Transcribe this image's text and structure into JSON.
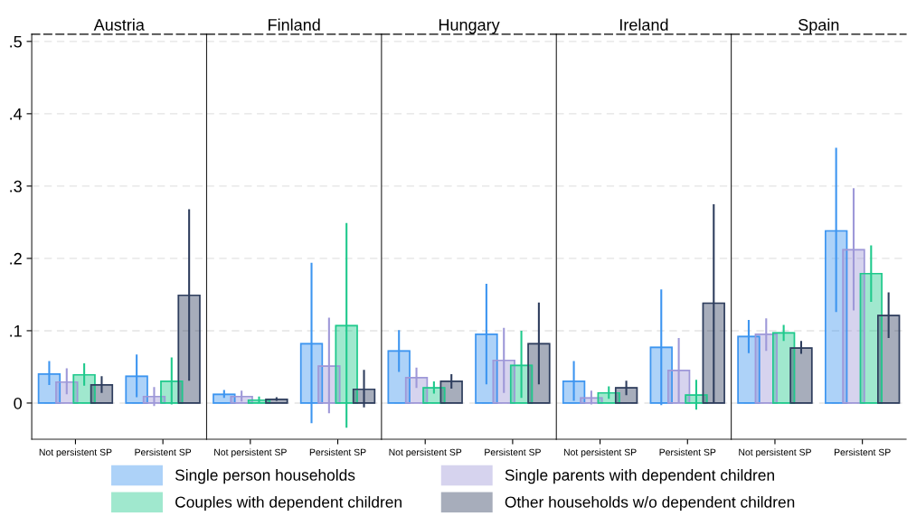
{
  "chart_data": [
    {
      "type": "bar",
      "title": "Austria",
      "categories": [
        "Not persistent SP",
        "Persistent SP"
      ],
      "ylim": [
        -0.05,
        0.51
      ],
      "yticks": [
        0,
        {
          "value": 0.1,
          "label": ".1"
        },
        {
          "value": 0.2,
          "label": ".2"
        },
        {
          "value": 0.3,
          "label": ".3"
        },
        {
          "value": 0.4,
          "label": ".4"
        },
        {
          "value": 0.5,
          "label": ".5"
        }
      ],
      "grid": "y",
      "legend": "bottom",
      "series": [
        {
          "name": "Single person households",
          "color": "#3d95f0",
          "values": [
            0.04,
            0.037
          ],
          "errors": [
            [
              0.025,
              0.058
            ],
            [
              0.008,
              0.067
            ]
          ]
        },
        {
          "name": "Single parents with dependent children",
          "color": "#9e98d8",
          "values": [
            0.029,
            0.009
          ],
          "errors": [
            [
              0.012,
              0.048
            ],
            [
              -0.004,
              0.022
            ]
          ]
        },
        {
          "name": "Couples with dependent children",
          "color": "#1fc98c",
          "values": [
            0.039,
            0.03
          ],
          "errors": [
            [
              0.024,
              0.055
            ],
            [
              -0.002,
              0.063
            ]
          ]
        },
        {
          "name": "Other households w/o dependent children",
          "color": "#2f3e5e",
          "values": [
            0.025,
            0.149
          ],
          "errors": [
            [
              0.014,
              0.037
            ],
            [
              0.031,
              0.268
            ]
          ]
        }
      ]
    },
    {
      "type": "bar",
      "title": "Finland",
      "categories": [
        "Not persistent SP",
        "Persistent SP"
      ],
      "ylim": [
        -0.05,
        0.51
      ],
      "yticks": [
        0,
        0.1,
        0.2,
        0.3,
        0.4,
        0.5
      ],
      "grid": "y",
      "tick_labels": "x",
      "series": [
        {
          "color": "#3d95f0",
          "values": [
            0.012,
            0.082
          ],
          "errors": [
            [
              0.007,
              0.018
            ],
            [
              -0.028,
              0.194
            ]
          ]
        },
        {
          "color": "#9e98d8",
          "values": [
            0.009,
            0.051
          ],
          "errors": [
            [
              0.002,
              0.017
            ],
            [
              -0.014,
              0.118
            ]
          ]
        },
        {
          "color": "#1fc98c",
          "values": [
            0.004,
            0.107
          ],
          "errors": [
            [
              0.0,
              0.009
            ],
            [
              -0.034,
              0.249
            ]
          ]
        },
        {
          "color": "#2f3e5e",
          "values": [
            0.005,
            0.019
          ],
          "errors": [
            [
              0.003,
              0.008
            ],
            [
              -0.006,
              0.046
            ]
          ]
        }
      ]
    },
    {
      "type": "bar",
      "title": "Hungary",
      "categories": [
        "Not persistent SP",
        "Persistent SP"
      ],
      "ylim": [
        -0.05,
        0.51
      ],
      "yticks": [
        0,
        0.1,
        0.2,
        0.3,
        0.4,
        0.5
      ],
      "grid": "y",
      "tick_labels": "x",
      "series": [
        {
          "color": "#3d95f0",
          "values": [
            0.072,
            0.095
          ],
          "errors": [
            [
              0.043,
              0.101
            ],
            [
              0.026,
              0.165
            ]
          ]
        },
        {
          "color": "#9e98d8",
          "values": [
            0.035,
            0.059
          ],
          "errors": [
            [
              0.021,
              0.049
            ],
            [
              0.014,
              0.104
            ]
          ]
        },
        {
          "color": "#1fc98c",
          "values": [
            0.021,
            0.052
          ],
          "errors": [
            [
              0.013,
              0.03
            ],
            [
              0.007,
              0.1
            ]
          ]
        },
        {
          "color": "#2f3e5e",
          "values": [
            0.03,
            0.082
          ],
          "errors": [
            [
              0.02,
              0.04
            ],
            [
              0.026,
              0.139
            ]
          ]
        }
      ]
    },
    {
      "type": "bar",
      "title": "Ireland",
      "categories": [
        "Not persistent SP",
        "Persistent SP"
      ],
      "ylim": [
        -0.05,
        0.51
      ],
      "yticks": [
        0,
        0.1,
        0.2,
        0.3,
        0.4,
        0.5
      ],
      "grid": "y",
      "tick_labels": "x",
      "series": [
        {
          "color": "#3d95f0",
          "values": [
            0.03,
            0.077
          ],
          "errors": [
            [
              0.003,
              0.058
            ],
            [
              -0.003,
              0.157
            ]
          ]
        },
        {
          "color": "#9e98d8",
          "values": [
            0.007,
            0.045
          ],
          "errors": [
            [
              -0.002,
              0.017
            ],
            [
              0.001,
              0.09
            ]
          ]
        },
        {
          "color": "#1fc98c",
          "values": [
            0.014,
            0.011
          ],
          "errors": [
            [
              0.006,
              0.023
            ],
            [
              -0.009,
              0.032
            ]
          ]
        },
        {
          "color": "#2f3e5e",
          "values": [
            0.021,
            0.138
          ],
          "errors": [
            [
              0.011,
              0.031
            ],
            [
              0.0,
              0.275
            ]
          ]
        }
      ]
    },
    {
      "type": "bar",
      "title": "Spain",
      "categories": [
        "Not persistent SP",
        "Persistent SP"
      ],
      "ylim": [
        -0.05,
        0.51
      ],
      "yticks": [
        0,
        0.1,
        0.2,
        0.3,
        0.4,
        0.5
      ],
      "grid": "y",
      "tick_labels": "x",
      "series": [
        {
          "color": "#3d95f0",
          "values": [
            0.092,
            0.238
          ],
          "errors": [
            [
              0.069,
              0.115
            ],
            [
              0.126,
              0.353
            ]
          ]
        },
        {
          "color": "#9e98d8",
          "values": [
            0.095,
            0.212
          ],
          "errors": [
            [
              0.072,
              0.117
            ],
            [
              0.128,
              0.297
            ]
          ]
        },
        {
          "color": "#1fc98c",
          "values": [
            0.097,
            0.179
          ],
          "errors": [
            [
              0.086,
              0.108
            ],
            [
              0.14,
              0.218
            ]
          ]
        },
        {
          "color": "#2f3e5e",
          "values": [
            0.076,
            0.121
          ],
          "errors": [
            [
              0.068,
              0.086
            ],
            [
              0.09,
              0.153
            ]
          ]
        }
      ]
    }
  ]
}
